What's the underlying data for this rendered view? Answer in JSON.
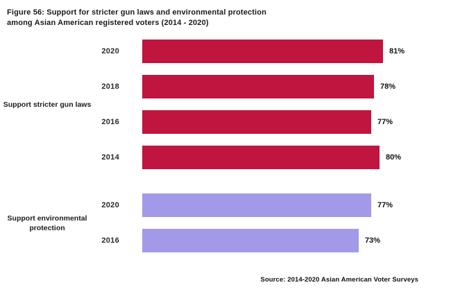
{
  "title": {
    "line1": "Figure 56: Support for stricter gun laws and environmental protection",
    "line2": "among Asian American registered voters (2014 - 2020)"
  },
  "source": "Source: 2014-2020 Asian American Voter Surveys",
  "colors": {
    "gun_laws_bar": "#C0153F",
    "environment_bar": "#A29AE8"
  },
  "chart_data": {
    "type": "bar",
    "orientation": "horizontal",
    "xlim": [
      0,
      100
    ],
    "value_unit": "%",
    "grid": false,
    "legend": false,
    "groups": [
      {
        "label": "Support stricter gun laws",
        "color": "#C0153F",
        "bars": [
          {
            "year": "2020",
            "value": 81,
            "label": "81%"
          },
          {
            "year": "2018",
            "value": 78,
            "label": "78%"
          },
          {
            "year": "2016",
            "value": 77,
            "label": "77%"
          },
          {
            "year": "2014",
            "value": 80,
            "label": "80%"
          }
        ]
      },
      {
        "label": "Support environmental protection",
        "color": "#A29AE8",
        "bars": [
          {
            "year": "2020",
            "value": 77,
            "label": "77%"
          },
          {
            "year": "2016",
            "value": 73,
            "label": "73%"
          }
        ]
      }
    ]
  }
}
